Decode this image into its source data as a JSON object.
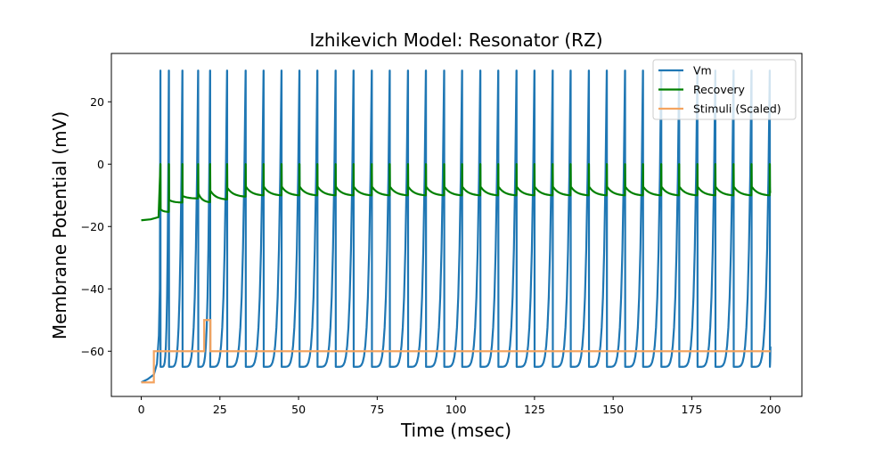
{
  "chart_data": {
    "type": "line",
    "title": "Izhikevich Model: Resonator (RZ)",
    "xlabel": "Time (msec)",
    "ylabel": "Membrane Potential (mV)",
    "xlim": [
      -9.5,
      210
    ],
    "ylim": [
      -74.5,
      35.5
    ],
    "xticks": [
      0,
      25,
      50,
      75,
      100,
      125,
      150,
      175,
      200
    ],
    "yticks": [
      -60,
      -40,
      -20,
      0,
      20
    ],
    "grid": false,
    "legend_position": "top-right",
    "series": [
      {
        "name": "Vm",
        "color": "#1f77b4",
        "spike_times": [
          6.1,
          8.8,
          13.1,
          18.1,
          21.9,
          27.3,
          33.2,
          38.9,
          44.6,
          50.3,
          56.0,
          61.8,
          67.5,
          73.3,
          79.0,
          84.8,
          90.5,
          96.3,
          102.0,
          107.8,
          113.5,
          119.3,
          125.0,
          130.8,
          136.5,
          142.3,
          148.0,
          153.8,
          159.5,
          165.3,
          171.0,
          176.8,
          182.5,
          188.3,
          194.0,
          199.8
        ],
        "peak": 30,
        "reset": -65,
        "start_value": -70,
        "end_value": -58.5
      },
      {
        "name": "Recovery",
        "color": "#008000",
        "start_value": -18,
        "spike_value": 0,
        "end_value": -9.3
      },
      {
        "name": "Stimuli (Scaled)",
        "color": "#f4a460",
        "x": [
          0,
          4,
          4,
          20,
          20,
          22,
          22,
          200
        ],
        "y": [
          -70,
          -70,
          -60,
          -60,
          -50,
          -50,
          -60,
          -60
        ]
      }
    ]
  }
}
